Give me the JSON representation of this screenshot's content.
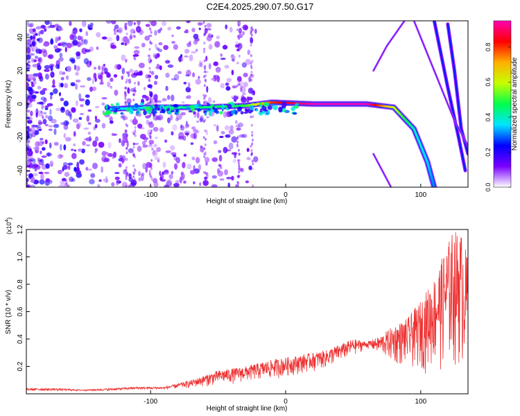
{
  "title": "C2E4.2025.290.07.50.G17",
  "chart_data": [
    {
      "type": "heatmap",
      "xlabel": "Height of straight line (km)",
      "ylabel": "Frequency (Hz)",
      "xlim": [
        -192,
        135
      ],
      "ylim": [
        -50,
        50
      ],
      "xticks": [
        -100,
        0,
        100
      ],
      "yticks": [
        -40,
        -20,
        0,
        20,
        40
      ],
      "colorbar": {
        "label": "Normalized spectral amplitude",
        "range": [
          0.0,
          0.95
        ],
        "ticks": [
          "0.0",
          "0.2",
          "0.4",
          "0.6",
          "0.8"
        ],
        "tick_values": [
          0.0,
          0.2,
          0.4,
          0.6,
          0.8
        ],
        "colormap": [
          "#ffffff",
          "#7a00ff",
          "#0000ff",
          "#00e5ff",
          "#00ff4c",
          "#c6ff00",
          "#ffb000",
          "#ff0000",
          "#ff00b4"
        ]
      },
      "main_track": [
        {
          "x": -130,
          "y": -3,
          "a": 0.35
        },
        {
          "x": -100,
          "y": -2,
          "a": 0.4
        },
        {
          "x": -60,
          "y": -2,
          "a": 0.45
        },
        {
          "x": -30,
          "y": -1,
          "a": 0.5
        },
        {
          "x": -10,
          "y": 1,
          "a": 0.8
        },
        {
          "x": 20,
          "y": 0,
          "a": 0.95
        },
        {
          "x": 60,
          "y": 0,
          "a": 0.95
        },
        {
          "x": 80,
          "y": -2,
          "a": 0.6
        },
        {
          "x": 95,
          "y": -15,
          "a": 0.4
        },
        {
          "x": 105,
          "y": -35,
          "a": 0.35
        },
        {
          "x": 110,
          "y": -50,
          "a": 0.3
        }
      ],
      "secondary_tracks": [
        [
          {
            "x": 110,
            "y": 50
          },
          {
            "x": 120,
            "y": 10
          },
          {
            "x": 128,
            "y": -20
          },
          {
            "x": 133,
            "y": -40
          }
        ],
        [
          {
            "x": 120,
            "y": 48
          },
          {
            "x": 125,
            "y": 20
          },
          {
            "x": 130,
            "y": -15
          },
          {
            "x": 135,
            "y": -30
          }
        ],
        [
          {
            "x": 95,
            "y": 50
          },
          {
            "x": 110,
            "y": 20
          },
          {
            "x": 125,
            "y": -10
          },
          {
            "x": 135,
            "y": -25
          }
        ],
        [
          {
            "x": 65,
            "y": 20
          },
          {
            "x": 75,
            "y": 35
          },
          {
            "x": 88,
            "y": 50
          }
        ],
        [
          {
            "x": 65,
            "y": -30
          },
          {
            "x": 78,
            "y": -50
          }
        ]
      ]
    },
    {
      "type": "line",
      "xlabel": "Height of straight line (km)",
      "ylabel": "SNR (10 * v/v)",
      "yscale_label": "(x10",
      "yscale_exp": "4",
      "yscale_close": ")",
      "xlim": [
        -192,
        135
      ],
      "ylim": [
        0,
        1.2
      ],
      "xticks": [
        -100,
        0,
        100
      ],
      "yticks": [
        "0.2",
        "0.4",
        "0.6",
        "0.8",
        "1.0",
        "1.2"
      ],
      "ytick_values": [
        0.2,
        0.4,
        0.6,
        0.8,
        1.0,
        1.2
      ],
      "color": "#ee3030",
      "series": [
        {
          "name": "upper",
          "x": [
            -192,
            -170,
            -150,
            -130,
            -110,
            -90,
            -70,
            -50,
            -30,
            -10,
            10,
            30,
            50,
            60,
            70,
            80,
            90,
            100,
            110,
            118,
            124,
            130,
            135
          ],
          "values": [
            0.04,
            0.04,
            0.03,
            0.04,
            0.05,
            0.05,
            0.1,
            0.17,
            0.2,
            0.25,
            0.28,
            0.32,
            0.4,
            0.38,
            0.42,
            0.5,
            0.55,
            0.68,
            0.85,
            1.05,
            1.2,
            1.18,
            1.0
          ]
        },
        {
          "name": "lower",
          "x": [
            -192,
            -170,
            -150,
            -130,
            -110,
            -90,
            -70,
            -50,
            -30,
            -10,
            10,
            30,
            50,
            60,
            70,
            80,
            90,
            100,
            110,
            118,
            124,
            130,
            135
          ],
          "values": [
            0.02,
            0.02,
            0.02,
            0.02,
            0.03,
            0.03,
            0.04,
            0.06,
            0.08,
            0.1,
            0.14,
            0.18,
            0.27,
            0.33,
            0.28,
            0.2,
            0.17,
            0.15,
            0.14,
            0.14,
            0.13,
            0.14,
            0.14
          ]
        }
      ]
    }
  ]
}
